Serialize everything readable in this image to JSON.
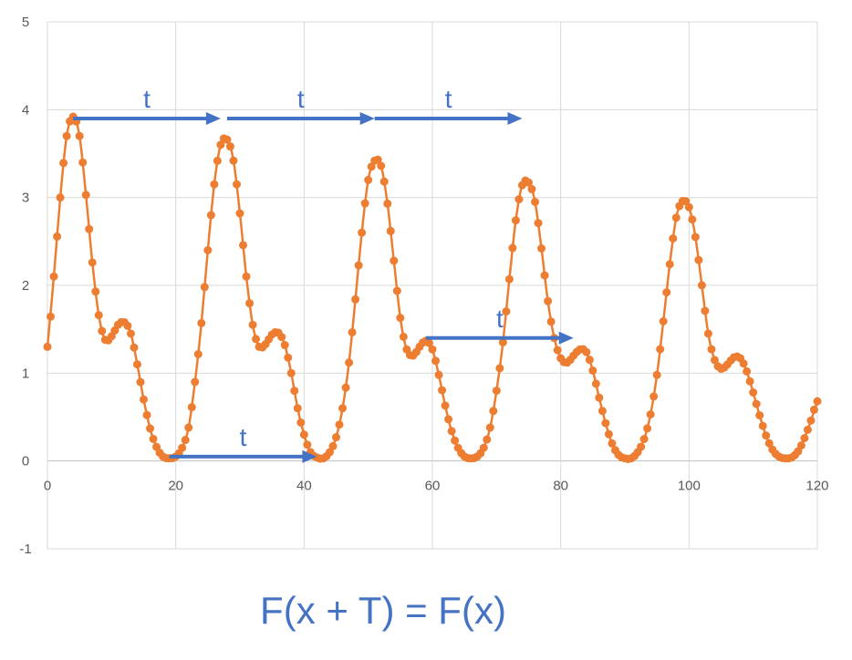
{
  "chart_data": {
    "type": "scatter",
    "title": "",
    "xlabel": "",
    "ylabel": "",
    "xlim": [
      0,
      120
    ],
    "ylim": [
      -1,
      5
    ],
    "x_ticks": [
      "0",
      "20",
      "40",
      "60",
      "80",
      "100",
      "120"
    ],
    "y_ticks": [
      "5",
      "4",
      "3",
      "2",
      "1",
      "0",
      "-1"
    ],
    "grid": true,
    "legend": "none",
    "series": [
      {
        "color": "#ed7d31",
        "marker": "circle",
        "line": true,
        "x_start": 0,
        "x_step": 0.6,
        "formula_note": "y = 2 + sin(x/3.8) + sin(x/7.6) * (1 - x/600) ... sampled curve",
        "x": [
          0,
          1,
          2,
          3,
          4,
          5,
          6,
          7,
          8,
          9,
          10,
          11,
          12,
          13,
          14,
          15,
          16,
          17,
          18,
          19,
          20,
          21,
          22,
          23,
          24,
          25,
          26,
          27,
          28,
          29,
          30,
          31,
          32,
          33,
          34,
          35,
          36,
          37,
          38,
          39,
          40,
          41,
          42,
          43,
          44,
          45,
          46,
          47,
          48,
          49,
          50,
          51,
          52,
          53,
          54,
          55,
          56,
          57,
          58,
          59,
          60,
          61,
          62,
          63,
          64,
          65,
          66,
          67,
          68,
          69,
          70,
          71,
          72,
          73,
          74,
          75,
          76,
          77,
          78,
          79,
          80,
          81,
          82,
          83,
          84,
          85,
          86,
          87,
          88,
          89,
          90,
          91,
          92,
          93,
          94,
          95,
          96,
          97,
          98,
          99,
          100,
          101,
          102,
          103,
          104,
          105,
          106,
          107,
          108,
          109,
          110,
          111,
          112,
          113,
          114,
          115,
          116,
          117,
          118,
          119,
          120
        ],
        "y": [
          1.3,
          2.1,
          3.0,
          3.7,
          3.92,
          3.7,
          3.03,
          2.26,
          1.66,
          1.38,
          1.42,
          1.55,
          1.58,
          1.45,
          1.1,
          0.7,
          0.37,
          0.16,
          0.05,
          0.03,
          0.05,
          0.15,
          0.38,
          0.9,
          1.57,
          2.4,
          3.15,
          3.6,
          3.66,
          3.42,
          2.82,
          2.1,
          1.55,
          1.3,
          1.33,
          1.44,
          1.46,
          1.32,
          1.0,
          0.6,
          0.3,
          0.1,
          0.04,
          0.03,
          0.1,
          0.27,
          0.6,
          1.12,
          1.84,
          2.6,
          3.2,
          3.42,
          3.36,
          2.93,
          2.28,
          1.63,
          1.27,
          1.2,
          1.3,
          1.37,
          1.27,
          0.98,
          0.63,
          0.34,
          0.15,
          0.05,
          0.03,
          0.05,
          0.15,
          0.38,
          0.8,
          1.35,
          2.07,
          2.74,
          3.14,
          3.17,
          2.95,
          2.42,
          1.82,
          1.4,
          1.17,
          1.12,
          1.2,
          1.27,
          1.24,
          1.03,
          0.72,
          0.43,
          0.2,
          0.07,
          0.03,
          0.03,
          0.1,
          0.25,
          0.53,
          0.98,
          1.59,
          2.24,
          2.77,
          2.96,
          2.89,
          2.55,
          2.0,
          1.45,
          1.15,
          1.05,
          1.1,
          1.18,
          1.17,
          1.02,
          0.78,
          0.52,
          0.29,
          0.13,
          0.05,
          0.03,
          0.04,
          0.11,
          0.26,
          0.46,
          0.68
        ]
      }
    ],
    "annotations": [
      {
        "text": "t",
        "from": [
          4,
          3.9
        ],
        "to": [
          27,
          3.9
        ]
      },
      {
        "text": "t",
        "from": [
          28,
          3.9
        ],
        "to": [
          51,
          3.9
        ]
      },
      {
        "text": "t",
        "from": [
          51,
          3.9
        ],
        "to": [
          74,
          3.9
        ]
      },
      {
        "text": "t",
        "from": [
          59,
          1.4
        ],
        "to": [
          82,
          1.4
        ]
      },
      {
        "text": "t",
        "from": [
          19,
          0.05
        ],
        "to": [
          42,
          0.05
        ]
      }
    ],
    "formula": "F(x + T) = F(x)"
  }
}
